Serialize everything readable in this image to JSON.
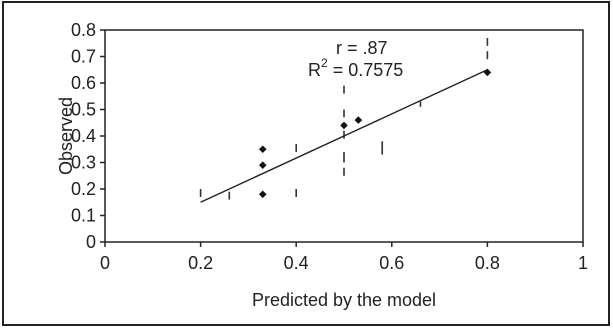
{
  "chart_data": {
    "type": "scatter",
    "xlabel": "Predicted by the model",
    "ylabel": "Observed",
    "xlim": [
      0,
      1
    ],
    "ylim": [
      0,
      0.8
    ],
    "xticks": [
      {
        "value": 0,
        "label": "0"
      },
      {
        "value": 0.2,
        "label": "0.2"
      },
      {
        "value": 0.4,
        "label": "0.4"
      },
      {
        "value": 0.6,
        "label": "0.6"
      },
      {
        "value": 0.8,
        "label": "0.8"
      },
      {
        "value": 1,
        "label": "1"
      }
    ],
    "yticks": [
      {
        "value": 0,
        "label": "0"
      },
      {
        "value": 0.1,
        "label": "0.1"
      },
      {
        "value": 0.2,
        "label": "0.2"
      },
      {
        "value": 0.3,
        "label": "0.3"
      },
      {
        "value": 0.4,
        "label": "0.4"
      },
      {
        "value": 0.5,
        "label": "0.5"
      },
      {
        "value": 0.6,
        "label": "0.6"
      },
      {
        "value": 0.7,
        "label": "0.7"
      },
      {
        "value": 0.8,
        "label": "0.8"
      }
    ],
    "grid": false,
    "points": [
      {
        "x": 0.33,
        "y": 0.35
      },
      {
        "x": 0.33,
        "y": 0.29
      },
      {
        "x": 0.33,
        "y": 0.18
      },
      {
        "x": 0.5,
        "y": 0.44
      },
      {
        "x": 0.53,
        "y": 0.46
      },
      {
        "x": 0.8,
        "y": 0.64
      }
    ],
    "error_bars": [
      {
        "x": 0.2,
        "low": 0.17,
        "high": 0.2
      },
      {
        "x": 0.26,
        "low": 0.16,
        "high": 0.19
      },
      {
        "x": 0.4,
        "low": 0.34,
        "high": 0.37
      },
      {
        "x": 0.4,
        "low": 0.17,
        "high": 0.2
      },
      {
        "x": 0.5,
        "low": 0.56,
        "high": 0.59
      },
      {
        "x": 0.5,
        "low": 0.47,
        "high": 0.5
      },
      {
        "x": 0.5,
        "low": 0.39,
        "high": 0.42
      },
      {
        "x": 0.5,
        "low": 0.3,
        "high": 0.34
      },
      {
        "x": 0.5,
        "low": 0.25,
        "high": 0.28
      },
      {
        "x": 0.58,
        "low": 0.33,
        "high": 0.38
      },
      {
        "x": 0.66,
        "low": 0.51,
        "high": 0.53
      },
      {
        "x": 0.8,
        "low": 0.74,
        "high": 0.77
      },
      {
        "x": 0.8,
        "low": 0.69,
        "high": 0.72
      }
    ],
    "regression": {
      "x0": 0.2,
      "y0": 0.15,
      "x1": 0.8,
      "y1": 0.65
    },
    "annotations": {
      "r_text": "r = .87",
      "r2_prefix": "R",
      "r2_exp": "2",
      "r2_value": " = 0.7575"
    }
  }
}
